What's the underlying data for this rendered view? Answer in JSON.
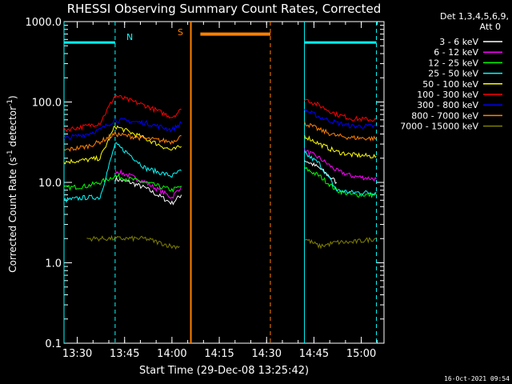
{
  "chart_data": {
    "type": "line",
    "title": "RHESSI Observing Summary Count Rates, Corrected",
    "xlabel": "Start Time (29-Dec-08 13:25:42)",
    "ylabel_main": "Corrected Count Rate (s",
    "ylabel_sup1": "-1",
    "ylabel_mid": " detector",
    "ylabel_sup2": "-1",
    "ylabel_end": ")",
    "y_scale": "log",
    "ylim": [
      0.1,
      1000
    ],
    "xlim_minutes": [
      13.43,
      15.12
    ],
    "x_ticks": [
      "13:30",
      "13:45",
      "14:00",
      "14:15",
      "14:30",
      "14:45",
      "15:00"
    ],
    "y_ticks": [
      "0.1",
      "1.0",
      "10.0",
      "100.0",
      "1000.0"
    ],
    "grid": false,
    "legend_placement": "right",
    "legend_header": [
      "Det 1,3,4,5,6,9,",
      "Att 0"
    ],
    "timestamp": "16-Oct-2021 09:54",
    "annotations": {
      "saa_label": "S",
      "night_label": "N"
    },
    "series": [
      {
        "name": "3 - 6 keV",
        "color": "#ffffff",
        "segments": [
          {
            "t": [
              13.7,
              13.78,
              13.86,
              14.0,
              14.05
            ],
            "v": [
              11,
              10,
              8.5,
              5.5,
              7
            ]
          },
          {
            "t": [
              14.7,
              14.78,
              14.87
            ],
            "v": [
              19,
              15,
              10
            ]
          }
        ]
      },
      {
        "name": "6 - 12 keV",
        "color": "#ff00ff",
        "segments": [
          {
            "t": [
              13.7,
              13.78,
              13.86,
              14.0,
              14.05
            ],
            "v": [
              14,
              12,
              10,
              6.5,
              9
            ]
          },
          {
            "t": [
              14.7,
              14.78,
              14.87,
              14.95,
              15.08
            ],
            "v": [
              25,
              20,
              14,
              12,
              11
            ]
          }
        ]
      },
      {
        "name": "12 - 25 keV",
        "color": "#00ff00",
        "segments": [
          {
            "t": [
              13.43,
              13.55,
              13.62,
              13.7,
              13.86,
              14.0,
              14.05
            ],
            "v": [
              8.5,
              9,
              10,
              12,
              10,
              8,
              9
            ]
          },
          {
            "t": [
              14.7,
              14.78,
              14.87,
              14.95,
              15.08
            ],
            "v": [
              15,
              12,
              8,
              7,
              7
            ]
          }
        ]
      },
      {
        "name": "25 - 50 keV",
        "color": "#00ffff",
        "segments": [
          {
            "t": [
              13.43,
              13.55,
              13.62,
              13.7,
              13.78,
              13.86,
              14.0,
              14.05
            ],
            "v": [
              6,
              6.5,
              6.5,
              30,
              22,
              15,
              12,
              14
            ]
          },
          {
            "t": [
              14.7,
              14.78,
              14.87,
              14.95,
              15.08
            ],
            "v": [
              23,
              17,
              8,
              7.5,
              7.5
            ]
          }
        ]
      },
      {
        "name": "50 - 100 keV",
        "color": "#ffff00",
        "segments": [
          {
            "t": [
              13.43,
              13.55,
              13.62,
              13.7,
              13.86,
              14.0,
              14.05
            ],
            "v": [
              18,
              19,
              20,
              50,
              35,
              25,
              28
            ]
          },
          {
            "t": [
              14.7,
              14.78,
              14.87,
              14.95,
              15.08
            ],
            "v": [
              38,
              30,
              24,
              22,
              21
            ]
          }
        ]
      },
      {
        "name": "100 - 300 keV",
        "color": "#ff0000",
        "segments": [
          {
            "t": [
              13.43,
              13.55,
              13.62,
              13.7,
              13.86,
              14.0,
              14.05
            ],
            "v": [
              45,
              50,
              55,
              120,
              90,
              65,
              80
            ]
          },
          {
            "t": [
              14.7,
              14.78,
              14.87,
              14.95,
              15.08
            ],
            "v": [
              110,
              90,
              70,
              62,
              60
            ]
          }
        ]
      },
      {
        "name": "300 - 800 keV",
        "color": "#0000ff",
        "segments": [
          {
            "t": [
              13.43,
              13.55,
              13.62,
              13.7,
              13.86,
              14.0,
              14.05
            ],
            "v": [
              35,
              40,
              45,
              60,
              55,
              45,
              55
            ]
          },
          {
            "t": [
              14.7,
              14.78,
              14.87,
              14.95,
              15.08
            ],
            "v": [
              80,
              65,
              55,
              50,
              50
            ]
          }
        ]
      },
      {
        "name": "800 - 7000 keV",
        "color": "#ff8000",
        "segments": [
          {
            "t": [
              13.43,
              13.55,
              13.62,
              13.7,
              13.86,
              14.0,
              14.05
            ],
            "v": [
              25,
              28,
              32,
              40,
              35,
              32,
              38
            ]
          },
          {
            "t": [
              14.7,
              14.78,
              14.87,
              14.95,
              15.08
            ],
            "v": [
              55,
              45,
              38,
              36,
              35
            ]
          }
        ]
      },
      {
        "name": "7000 - 15000 keV",
        "color": "#808000",
        "segments": [
          {
            "t": [
              13.55,
              13.62,
              13.7,
              13.86,
              14.0,
              14.04
            ],
            "v": [
              2,
              2,
              2,
              2,
              1.6,
              1.6
            ]
          },
          {
            "t": [
              14.7,
              14.78,
              14.87,
              14.95,
              15.08
            ],
            "v": [
              2,
              1.6,
              1.8,
              1.8,
              2
            ]
          }
        ]
      }
    ],
    "saa_bar": {
      "t": [
        14.15,
        14.52
      ],
      "level": 700
    },
    "night_bars": [
      {
        "t": [
          13.43,
          13.7
        ],
        "level": 550
      },
      {
        "t": [
          14.7,
          15.08
        ],
        "level": 550
      }
    ],
    "vlines": [
      {
        "t": 13.43,
        "color": "#00ffff",
        "style": "solid"
      },
      {
        "t": 13.7,
        "color": "#00ffff",
        "style": "dashed"
      },
      {
        "t": 14.1,
        "color": "#ff8000",
        "style": "solid"
      },
      {
        "t": 14.52,
        "color": "#ff8000",
        "style": "dashed"
      },
      {
        "t": 14.7,
        "color": "#00ffff",
        "style": "solid"
      },
      {
        "t": 15.08,
        "color": "#00ffff",
        "style": "dashed"
      }
    ]
  }
}
